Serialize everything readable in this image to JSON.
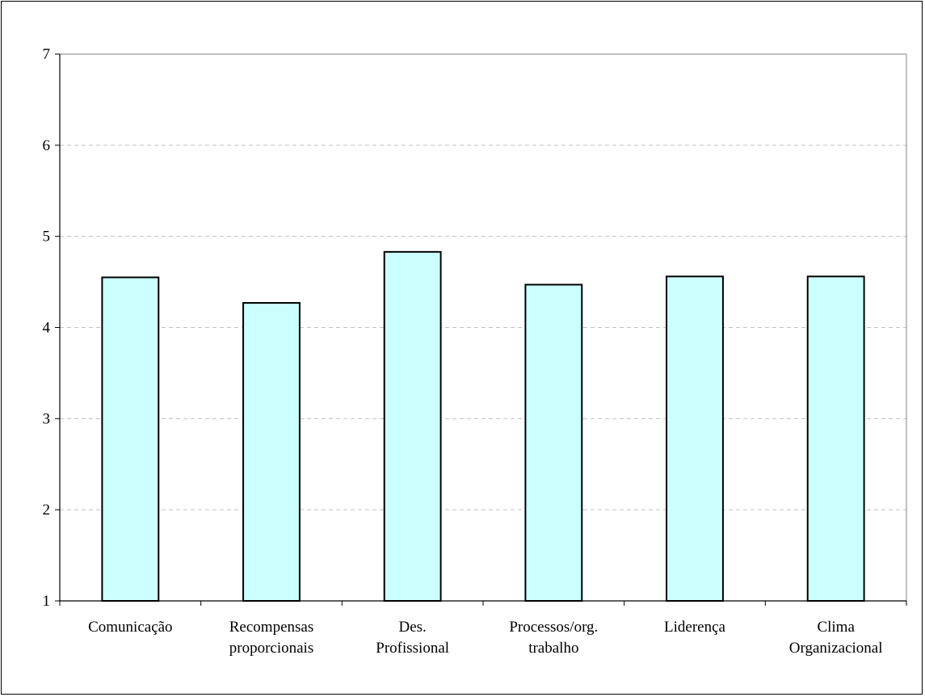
{
  "chart_data": {
    "type": "bar",
    "categories": [
      [
        "Comunicação"
      ],
      [
        "Recompensas",
        "proporcionais"
      ],
      [
        "Des.",
        "Profissional"
      ],
      [
        "Processos/org.",
        "trabalho"
      ],
      [
        "Liderença"
      ],
      [
        "Clima",
        "Organizacional"
      ]
    ],
    "values": [
      4.55,
      4.27,
      4.83,
      4.47,
      4.56,
      4.56
    ],
    "title": "",
    "xlabel": "",
    "ylabel": "",
    "ylim": [
      1,
      7
    ],
    "yticks": [
      "1",
      "2",
      "3",
      "4",
      "5",
      "6",
      "7"
    ],
    "grid": true,
    "bar_color": "#ccffff",
    "bar_edge_color": "#000000",
    "grid_color": "#c0c0c0"
  }
}
